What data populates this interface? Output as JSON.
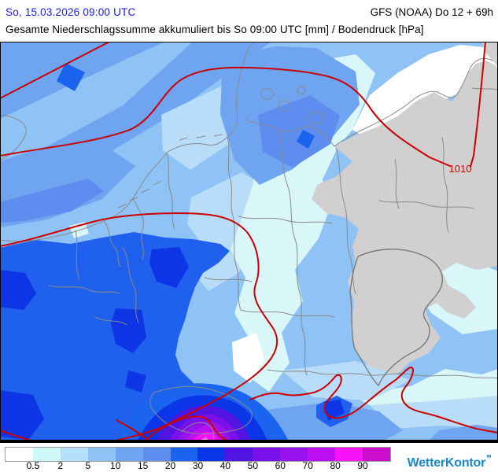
{
  "header": {
    "datetime": "So, 15.03.2026 09:00 UTC",
    "datetime_color": "#1a1aee",
    "model_run": "GFS (NOAA) Do 12 + 69h",
    "title": "Gesamte Niederschlagssumme akkumuliert bis So 09:00 UTC [mm] / Bodendruck [hPa]"
  },
  "map": {
    "pressure_label": "1010",
    "isobar_color": "#cc0000",
    "dry_land_color": "#d1cfcf",
    "border_color": "#8a8a8a",
    "unit_precipitation": "mm",
    "unit_pressure": "hPa"
  },
  "legend": {
    "boundary_labels": [
      "0.5",
      "2",
      "5",
      "10",
      "15",
      "20",
      "30",
      "40",
      "50",
      "60",
      "70",
      "80",
      "90"
    ],
    "swatch_colors": [
      "#ffffff",
      "#cff8f8",
      "#b5e0fa",
      "#8fc2f5",
      "#6ea4f0",
      "#5e8df0",
      "#1b64f0",
      "#0a36e8",
      "#5214e0",
      "#7a10ea",
      "#9812ee",
      "#bd10f2",
      "#f715f7",
      "#cc0ecc"
    ]
  },
  "branding": {
    "name": "WetterKontor",
    "color": "#1a87c8"
  }
}
